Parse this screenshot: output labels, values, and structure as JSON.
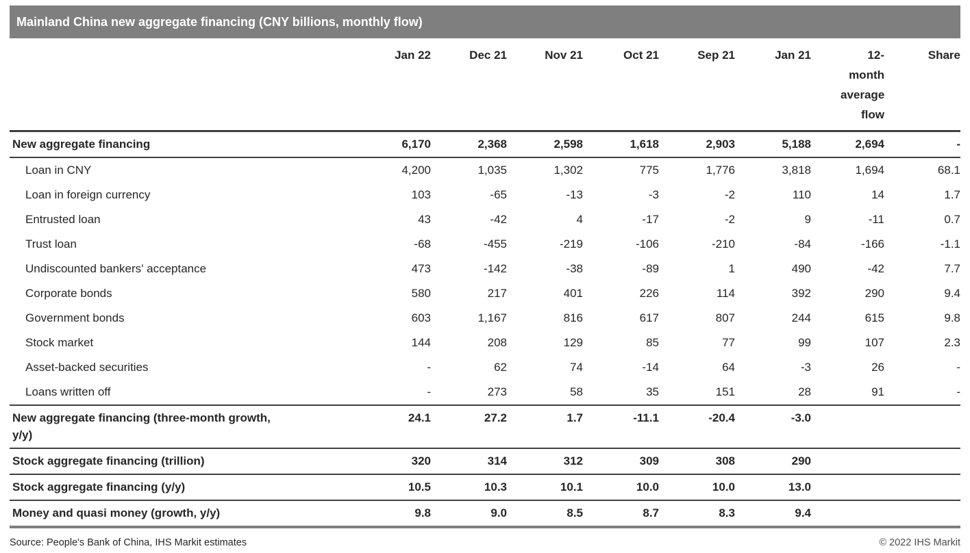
{
  "chart_data": {
    "type": "table",
    "title": "Mainland China new aggregate financing (CNY billions, monthly flow)",
    "columns": [
      "Jan 22",
      "Dec 21",
      "Nov 21",
      "Oct 21",
      "Sep 21",
      "Jan 21",
      "12-month average flow",
      "Share"
    ],
    "rows": [
      {
        "label": "New aggregate financing",
        "style": "total",
        "values": [
          "6,170",
          "2,368",
          "2,598",
          "1,618",
          "2,903",
          "5,188",
          "2,694",
          "-"
        ]
      },
      {
        "label": "Loan in CNY",
        "style": "item",
        "values": [
          "4,200",
          "1,035",
          "1,302",
          "775",
          "1,776",
          "3,818",
          "1,694",
          "68.1"
        ]
      },
      {
        "label": "Loan in foreign currency",
        "style": "item",
        "values": [
          "103",
          "-65",
          "-13",
          "-3",
          "-2",
          "110",
          "14",
          "1.7"
        ]
      },
      {
        "label": "Entrusted loan",
        "style": "item",
        "values": [
          "43",
          "-42",
          "4",
          "-17",
          "-2",
          "9",
          "-11",
          "0.7"
        ]
      },
      {
        "label": "Trust loan",
        "style": "item",
        "values": [
          "-68",
          "-455",
          "-219",
          "-106",
          "-210",
          "-84",
          "-166",
          "-1.1"
        ]
      },
      {
        "label": "Undiscounted bankers' acceptance",
        "style": "item",
        "values": [
          "473",
          "-142",
          "-38",
          "-89",
          "1",
          "490",
          "-42",
          "7.7"
        ]
      },
      {
        "label": "Corporate bonds",
        "style": "item",
        "values": [
          "580",
          "217",
          "401",
          "226",
          "114",
          "392",
          "290",
          "9.4"
        ]
      },
      {
        "label": "Government bonds",
        "style": "item",
        "values": [
          "603",
          "1,167",
          "816",
          "617",
          "807",
          "244",
          "615",
          "9.8"
        ]
      },
      {
        "label": "Stock market",
        "style": "item",
        "values": [
          "144",
          "208",
          "129",
          "85",
          "77",
          "99",
          "107",
          "2.3"
        ]
      },
      {
        "label": "Asset-backed securities",
        "style": "item",
        "values": [
          "-",
          "62",
          "74",
          "-14",
          "64",
          "-3",
          "26",
          "-"
        ]
      },
      {
        "label": "Loans written off",
        "style": "item",
        "values": [
          "-",
          "273",
          "58",
          "35",
          "151",
          "28",
          "91",
          "-"
        ]
      },
      {
        "label": "New aggregate financing (three-month growth, y/y)",
        "style": "section",
        "values": [
          "24.1",
          "27.2",
          "1.7",
          "-11.1",
          "-20.4",
          "-3.0",
          "",
          ""
        ]
      },
      {
        "label": "Stock aggregate financing (trillion)",
        "style": "section",
        "values": [
          "320",
          "314",
          "312",
          "309",
          "308",
          "290",
          "",
          ""
        ]
      },
      {
        "label": "Stock aggregate financing (y/y)",
        "style": "section",
        "values": [
          "10.5",
          "10.3",
          "10.1",
          "10.0",
          "10.0",
          "13.0",
          "",
          ""
        ]
      },
      {
        "label": "Money and quasi money (growth, y/y)",
        "style": "section",
        "values": [
          "9.8",
          "9.0",
          "8.5",
          "8.7",
          "8.3",
          "9.4",
          "",
          ""
        ]
      }
    ]
  },
  "footer": {
    "source": "Source: People's Bank of China, IHS Markit estimates",
    "copyright": "© 2022 IHS Markit"
  },
  "colors": {
    "title_bar_bg": "#7f7f7f",
    "title_bar_text": "#ffffff",
    "body_text": "#262626",
    "section_rule": "#3f3f3f",
    "bottom_rule": "#7f7f7f"
  }
}
